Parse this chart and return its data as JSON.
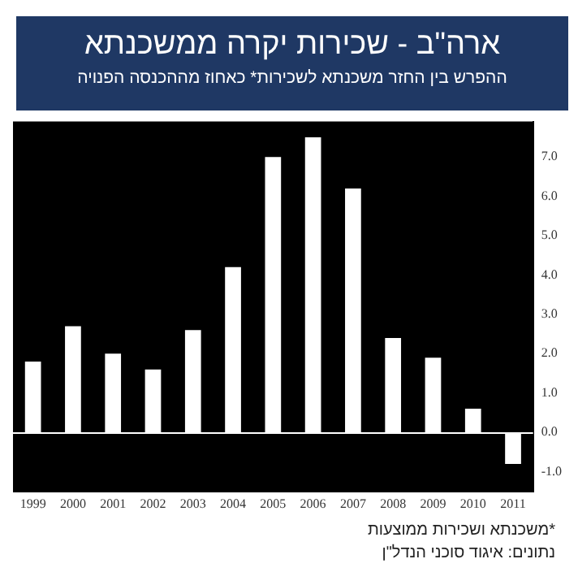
{
  "chart_data": {
    "type": "bar",
    "title": "ארה\"ב - שכירות יקרה ממשכנתא",
    "subtitle": "ההפרש בין החזר משכנתא לשכירות* כאחוז מההכנסה הפנויה",
    "categories": [
      "1999",
      "2000",
      "2001",
      "2002",
      "2003",
      "2004",
      "2005",
      "2006",
      "2007",
      "2008",
      "2009",
      "2010",
      "2011"
    ],
    "values": [
      1.8,
      2.7,
      2.0,
      1.6,
      2.6,
      4.2,
      7.0,
      7.5,
      6.2,
      2.4,
      1.9,
      0.6,
      -0.8
    ],
    "color": "#ffffff",
    "ylim": [
      -1.5,
      7.9
    ],
    "yticks": [
      {
        "value": -1,
        "label": "-1.0"
      },
      {
        "value": 0,
        "label": "0.0"
      },
      {
        "value": 1,
        "label": "1.0"
      },
      {
        "value": 2,
        "label": "2.0"
      },
      {
        "value": 3,
        "label": "3.0"
      },
      {
        "value": 4,
        "label": "4.0"
      },
      {
        "value": 5,
        "label": "5.0"
      },
      {
        "value": 6,
        "label": "6.0"
      },
      {
        "value": 7,
        "label": "7.0"
      }
    ],
    "grid": false,
    "legend": false,
    "ref_lines": [
      {
        "axis": "y",
        "value": 0,
        "color": "#ffffff"
      }
    ],
    "annotations": [
      "*משכנתא ושכירות ממוצעות",
      "נתונים: איגוד סוכני הנדל\"ן"
    ]
  }
}
